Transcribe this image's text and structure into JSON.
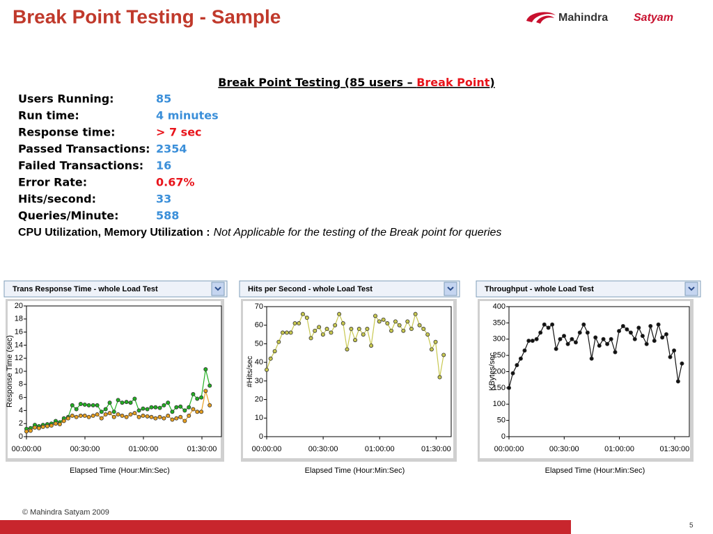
{
  "header": {
    "title": "Break Point Testing - Sample",
    "logo": {
      "brand": "Mahindra",
      "sub": "Satyam"
    }
  },
  "summary": {
    "heading": {
      "prefix": "Break Point Testing (85 users – ",
      "highlight": "Break Point",
      "suffix": ")"
    },
    "rows": [
      {
        "label": "Users Running:",
        "value": "85",
        "color": "#3b8fd9"
      },
      {
        "label": "Run time:",
        "value": "4 minutes",
        "color": "#3b8fd9"
      },
      {
        "label": "Response time:",
        "value": "> 7 sec",
        "color": "#e8141b"
      },
      {
        "label": "Passed Transactions:",
        "value": "2354",
        "color": "#3b8fd9"
      },
      {
        "label": "Failed Transactions:",
        "value": "16",
        "color": "#3b8fd9"
      },
      {
        "label": "Error Rate:",
        "value": "0.67%",
        "color": "#e8141b"
      },
      {
        "label": "Hits/second:",
        "value": "33",
        "color": "#3b8fd9"
      },
      {
        "label": "Queries/Minute:",
        "value": "588",
        "color": "#3b8fd9"
      }
    ],
    "note": {
      "label": "CPU Utilization, Memory Utilization :",
      "text": "Not Applicable for the testing of the Break point for queries"
    }
  },
  "chart_data": [
    {
      "type": "line",
      "title": "Trans Response Time - whole Load Test",
      "x_label": "Elapsed Time (Hour:Min:Sec)",
      "y_label": "Response Time (sec)",
      "x": [
        0,
        2.1,
        4.3,
        6.4,
        8.5,
        10.7,
        12.8,
        15,
        17.1,
        19.2,
        21.4,
        23.5,
        25.6,
        27.8,
        29.9,
        32,
        34.2,
        36.3,
        38.5,
        40.6,
        42.7,
        44.9,
        47,
        49.1,
        51.3,
        53.4,
        55.5,
        57.7,
        59.8,
        62,
        64.1,
        66.2,
        68.4,
        70.5,
        72.6,
        74.8,
        76.9,
        79,
        81.2,
        83.3,
        85.5,
        87.6,
        89.7,
        91.9,
        94
      ],
      "series": [
        {
          "color": "#22b022",
          "values": [
            1.2,
            1.3,
            1.8,
            1.6,
            1.8,
            1.9,
            2.0,
            2.4,
            2.2,
            2.8,
            3.0,
            4.8,
            4.2,
            5.0,
            4.9,
            4.8,
            4.8,
            4.8,
            3.8,
            4.2,
            5.2,
            3.8,
            5.6,
            5.2,
            5.3,
            5.2,
            5.8,
            4.0,
            4.3,
            4.2,
            4.5,
            4.5,
            4.4,
            4.8,
            5.2,
            3.8,
            4.5,
            4.6,
            4.0,
            4.5,
            6.5,
            5.8,
            6.0,
            10.3,
            7.8
          ]
        },
        {
          "color": "#e8a020",
          "values": [
            0.8,
            0.9,
            1.4,
            1.3,
            1.5,
            1.6,
            1.7,
            2.0,
            1.9,
            2.4,
            2.8,
            3.2,
            3.0,
            3.2,
            3.2,
            3.0,
            3.2,
            3.4,
            2.8,
            3.4,
            3.6,
            3.0,
            3.4,
            3.2,
            3.0,
            3.4,
            3.6,
            3.0,
            3.2,
            3.1,
            3.0,
            2.8,
            3.0,
            2.8,
            3.2,
            2.6,
            2.8,
            3.0,
            2.4,
            3.2,
            4.2,
            3.8,
            3.8,
            7.0,
            4.8
          ]
        }
      ],
      "xlim": [
        0,
        100
      ],
      "xticks": [
        {
          "value": 0,
          "label": "00:00:00"
        },
        {
          "value": 30,
          "label": "00:30:00"
        },
        {
          "value": 60,
          "label": "01:00:00"
        },
        {
          "value": 90,
          "label": "01:30:00"
        }
      ],
      "ylim": [
        0,
        20
      ],
      "yticks": [
        0,
        2,
        4,
        6,
        8,
        10,
        12,
        14,
        16,
        18,
        20
      ],
      "grid": false
    },
    {
      "type": "line",
      "title": "Hits per Second - whole Load Test",
      "x_label": "Elapsed Time (Hour:Min:Sec)",
      "y_label": "#Hits/sec",
      "x": [
        0,
        2.1,
        4.3,
        6.4,
        8.5,
        10.7,
        12.8,
        15,
        17.1,
        19.2,
        21.4,
        23.5,
        25.6,
        27.8,
        29.9,
        32,
        34.2,
        36.3,
        38.5,
        40.6,
        42.7,
        44.9,
        47,
        49.1,
        51.3,
        53.4,
        55.5,
        57.7,
        59.8,
        62,
        64.1,
        66.2,
        68.4,
        70.5,
        72.6,
        74.8,
        76.9,
        79,
        81.2,
        83.3,
        85.5,
        87.6,
        89.7,
        91.9,
        94
      ],
      "series": [
        {
          "color": "#c8c850",
          "values": [
            36,
            42,
            46,
            51,
            56,
            56,
            56,
            61,
            61,
            66,
            64,
            53,
            57,
            59,
            55,
            58,
            56,
            60,
            66,
            61,
            47,
            58,
            52,
            58,
            55,
            58,
            49,
            65,
            62,
            63,
            61,
            57,
            62,
            60,
            57,
            62,
            58,
            66,
            60,
            58,
            55,
            47,
            51,
            32,
            44
          ]
        }
      ],
      "xlim": [
        0,
        98
      ],
      "xticks": [
        {
          "value": 0,
          "label": "00:00:00"
        },
        {
          "value": 30,
          "label": "00:30:00"
        },
        {
          "value": 60,
          "label": "01:00:00"
        },
        {
          "value": 90,
          "label": "01:30:00"
        }
      ],
      "ylim": [
        0,
        70
      ],
      "yticks": [
        0,
        10,
        20,
        30,
        40,
        50,
        60,
        70
      ],
      "grid": false
    },
    {
      "type": "line",
      "title": "Throughput - whole Load Test",
      "x_label": "Elapsed Time (Hour:Min:Sec)",
      "y_label": "KBytes/sec",
      "x": [
        0,
        2.1,
        4.3,
        6.4,
        8.5,
        10.7,
        12.8,
        15,
        17.1,
        19.2,
        21.4,
        23.5,
        25.6,
        27.8,
        29.9,
        32,
        34.2,
        36.3,
        38.5,
        40.6,
        42.7,
        44.9,
        47,
        49.1,
        51.3,
        53.4,
        55.5,
        57.7,
        59.8,
        62,
        64.1,
        66.2,
        68.4,
        70.5,
        72.6,
        74.8,
        76.9,
        79,
        81.2,
        83.3,
        85.5,
        87.6,
        89.7,
        91.9,
        94
      ],
      "series": [
        {
          "color": "#111111",
          "values": [
            150,
            195,
            220,
            240,
            265,
            295,
            295,
            300,
            320,
            345,
            335,
            345,
            270,
            300,
            310,
            285,
            300,
            290,
            320,
            345,
            320,
            240,
            305,
            280,
            300,
            285,
            300,
            260,
            325,
            340,
            330,
            320,
            300,
            335,
            310,
            285,
            340,
            295,
            345,
            305,
            315,
            245,
            265,
            170,
            225
          ]
        }
      ],
      "xlim": [
        0,
        98
      ],
      "xticks": [
        {
          "value": 0,
          "label": "00:00:00"
        },
        {
          "value": 30,
          "label": "00:30:00"
        },
        {
          "value": 60,
          "label": "01:00:00"
        },
        {
          "value": 90,
          "label": "01:30:00"
        }
      ],
      "ylim": [
        0,
        400
      ],
      "yticks": [
        0,
        50,
        100,
        150,
        200,
        250,
        300,
        350,
        400
      ],
      "grid": false
    }
  ],
  "footer": {
    "copyright": "© Mahindra Satyam 2009",
    "page": "5"
  }
}
